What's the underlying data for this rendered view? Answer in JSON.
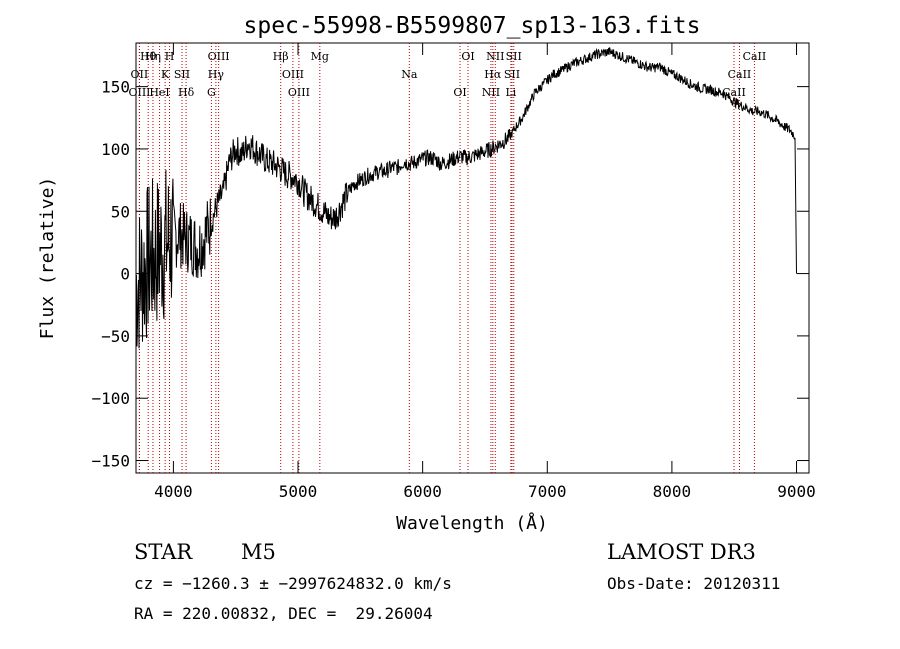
{
  "chart_data": {
    "type": "line",
    "title": "spec-55998-B5599807_sp13-163.fits",
    "xlabel": "Wavelength (Å)",
    "ylabel": "Flux (relative)",
    "xlim": [
      3700,
      9100
    ],
    "ylim": [
      -160,
      185
    ],
    "x_ticks": [
      4000,
      5000,
      6000,
      7000,
      8000,
      9000
    ],
    "x_tick_labels": [
      "4000",
      "5000",
      "6000",
      "7000",
      "8000",
      "9000"
    ],
    "y_ticks": [
      -150,
      -100,
      -50,
      0,
      50,
      100,
      150
    ],
    "y_tick_labels": [
      "−150",
      "−100",
      "−50",
      "0",
      "50",
      "100",
      "150"
    ],
    "series": [
      {
        "name": "spectrum",
        "x": [
          3700,
          3750,
          3800,
          3850,
          3900,
          3950,
          4000,
          4050,
          4100,
          4150,
          4200,
          4250,
          4300,
          4350,
          4400,
          4450,
          4500,
          4550,
          4600,
          4650,
          4700,
          4750,
          4800,
          4850,
          4900,
          4950,
          5000,
          5050,
          5100,
          5150,
          5200,
          5250,
          5300,
          5350,
          5400,
          5450,
          5500,
          5550,
          5600,
          5650,
          5700,
          5750,
          5800,
          5850,
          5900,
          5950,
          6000,
          6050,
          6100,
          6150,
          6200,
          6250,
          6300,
          6350,
          6400,
          6450,
          6500,
          6550,
          6600,
          6650,
          6700,
          6750,
          6800,
          6850,
          6900,
          6950,
          7000,
          7050,
          7100,
          7150,
          7200,
          7250,
          7300,
          7350,
          7400,
          7450,
          7500,
          7550,
          7600,
          7650,
          7700,
          7750,
          7800,
          7850,
          7900,
          7950,
          8000,
          8050,
          8100,
          8150,
          8200,
          8250,
          8300,
          8350,
          8400,
          8450,
          8500,
          8550,
          8600,
          8650,
          8700,
          8750,
          8800,
          8850,
          8900,
          8950,
          8990,
          9000
        ],
        "y": [
          -10,
          0,
          10,
          15,
          20,
          25,
          30,
          32,
          28,
          25,
          20,
          30,
          40,
          55,
          65,
          90,
          100,
          95,
          105,
          100,
          95,
          90,
          88,
          85,
          80,
          78,
          75,
          65,
          60,
          55,
          50,
          45,
          45,
          55,
          65,
          72,
          75,
          78,
          80,
          82,
          82,
          85,
          85,
          90,
          88,
          90,
          92,
          93,
          92,
          88,
          90,
          92,
          94,
          93,
          94,
          96,
          98,
          100,
          103,
          106,
          110,
          118,
          125,
          135,
          145,
          150,
          155,
          160,
          162,
          165,
          168,
          170,
          172,
          174,
          176,
          177,
          178,
          176,
          174,
          172,
          170,
          168,
          166,
          165,
          166,
          163,
          160,
          158,
          155,
          152,
          150,
          148,
          148,
          146,
          145,
          142,
          138,
          135,
          133,
          130,
          130,
          128,
          125,
          122,
          118,
          115,
          110,
          0
        ]
      }
    ],
    "lines": [
      {
        "label": "Hθ",
        "x": 3798
      },
      {
        "label": "OII",
        "x": 3727
      },
      {
        "label": "OIII",
        "x": 3728
      },
      {
        "label": "Hη",
        "x": 3836
      },
      {
        "label": "K",
        "x": 3934
      },
      {
        "label": "HeI",
        "x": 3889
      },
      {
        "label": "H",
        "x": 3969
      },
      {
        "label": "SII",
        "x": 4069
      },
      {
        "label": "Hδ",
        "x": 4102
      },
      {
        "label": "OIII",
        "x": 4363
      },
      {
        "label": "Hγ",
        "x": 4341
      },
      {
        "label": "G",
        "x": 4305
      },
      {
        "label": "Hβ",
        "x": 4861
      },
      {
        "label": "OIII",
        "x": 4959
      },
      {
        "label": "OIII",
        "x": 5007
      },
      {
        "label": "Mg",
        "x": 5175
      },
      {
        "label": "Na",
        "x": 5893
      },
      {
        "label": "OI",
        "x": 6300
      },
      {
        "label": "OI",
        "x": 6364
      },
      {
        "label": "Hα",
        "x": 6563
      },
      {
        "label": "NII",
        "x": 6548
      },
      {
        "label": "NII",
        "x": 6583
      },
      {
        "label": "SII",
        "x": 6717
      },
      {
        "label": "Li",
        "x": 6708
      },
      {
        "label": "SII",
        "x": 6731
      },
      {
        "label": "CaII",
        "x": 8542
      },
      {
        "label": "CaII",
        "x": 8498
      },
      {
        "label": "CaII",
        "x": 8662
      }
    ]
  },
  "info": {
    "object_class": "STAR",
    "subclass": "M5",
    "survey": "LAMOST DR3",
    "redshift_line": "cz = −1260.3 ± −2997624832.0 km/s",
    "obs_date_line": "Obs-Date: 20120311",
    "coords_line": "RA = 220.00832, DEC =  29.26004"
  },
  "colors": {
    "spectrum": "#000000",
    "line_markers": "#c00000"
  }
}
